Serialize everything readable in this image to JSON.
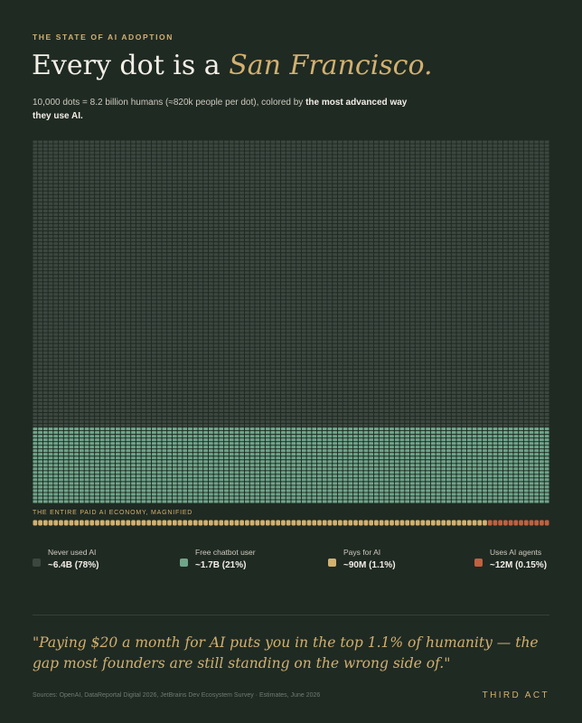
{
  "header": {
    "eyebrow": "THE STATE OF AI ADOPTION",
    "title_prefix": "Every dot is a ",
    "title_accent": "San Francisco.",
    "subtitle_text": "10,000 dots = 8.2 billion humans (≈820k people per dot), colored by ",
    "subtitle_bold": "the most advanced way they use AI."
  },
  "chart_data": {
    "type": "waffle",
    "total_dots": 10000,
    "columns": 100,
    "categories": [
      {
        "name": "Never used AI",
        "value_label": "~6.4B (78%)",
        "dots": 7900,
        "color": "#3c4740"
      },
      {
        "name": "Free chatbot user",
        "value_label": "~1.7B (21%)",
        "dots": 2100,
        "color": "#6fa58a"
      },
      {
        "name": "Pays for AI",
        "value_label": "~90M (1.1%)",
        "dots": 0,
        "color": "#d2b06f"
      },
      {
        "name": "Uses AI agents",
        "value_label": "~12M (0.15%)",
        "dots": 0,
        "color": "#c0613f"
      }
    ],
    "magnified": {
      "label": "THE ENTIRE PAID AI ECONOMY, MAGNIFIED",
      "dots": 100,
      "pays_for_ai_dots": 88,
      "uses_ai_agents_dots": 12
    }
  },
  "quote": "\"Paying $20 a month for AI puts you in the top 1.1% of humanity — the gap most founders are still standing on the wrong side of.\"",
  "footer": {
    "sources": "Sources: OpenAI, DataReportal Digital 2026, JetBrains Dev Ecosystem Survey · Estimates, June 2026",
    "brand": "THIRD ACT"
  }
}
